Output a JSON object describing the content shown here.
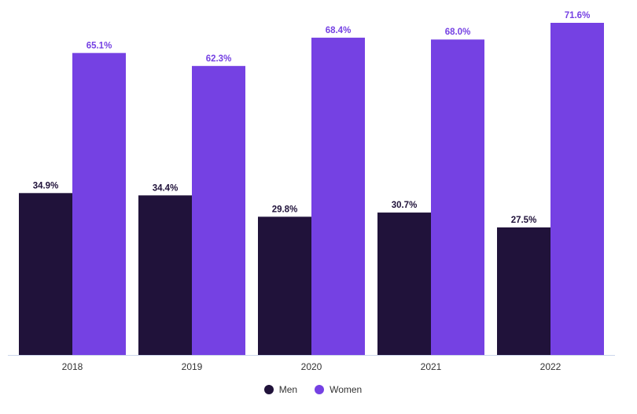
{
  "chart_data": {
    "type": "bar",
    "categories": [
      "2018",
      "2019",
      "2020",
      "2021",
      "2022"
    ],
    "series": [
      {
        "name": "Men",
        "values": [
          34.9,
          34.4,
          29.8,
          30.7,
          27.5
        ],
        "labels": [
          "34.9%",
          "34.4%",
          "29.8%",
          "30.7%",
          "27.5%"
        ],
        "color": "#20123a"
      },
      {
        "name": "Women",
        "values": [
          65.1,
          62.3,
          68.4,
          68.0,
          71.6
        ],
        "labels": [
          "65.1%",
          "62.3%",
          "68.4%",
          "68.0%",
          "71.6%"
        ],
        "color": "#7541e3"
      }
    ],
    "title": "",
    "xlabel": "",
    "ylabel": "",
    "ylim": [
      0,
      71.6
    ],
    "grid": false,
    "legend": "bottom-center"
  }
}
